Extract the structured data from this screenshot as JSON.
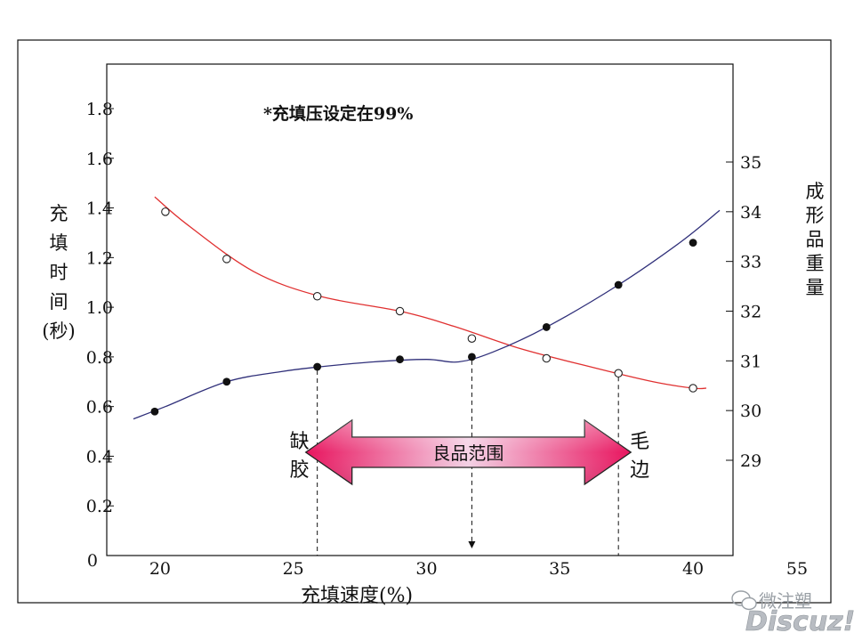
{
  "chart_data": {
    "type": "line",
    "annotation_note": "*充填压设定在99%",
    "xlabel": "充填速度(%)",
    "x_ticks": [
      "20",
      "25",
      "30",
      "35",
      "40"
    ],
    "x_extra_tick": "55",
    "xlim": [
      18,
      41.5
    ],
    "y_left": {
      "label_chars": [
        "充",
        "填",
        "时",
        "间",
        "(秒)"
      ],
      "ticks": [
        "0",
        "0.2",
        "0.4",
        "0.6",
        "0.8",
        "1.0",
        "1.2",
        "1.4",
        "1.6",
        "1.8"
      ],
      "range": [
        0,
        1.8
      ]
    },
    "y_right": {
      "label_chars": [
        "成",
        "形",
        "品",
        "重",
        "量"
      ],
      "ticks": [
        "29",
        "30",
        "31",
        "32",
        "33",
        "34",
        "35"
      ],
      "range": [
        29,
        35
      ]
    },
    "series": [
      {
        "axis": "right",
        "color": "#e03030",
        "marker": "open-circle",
        "points": [
          [
            20.2,
            34.0
          ],
          [
            22.5,
            33.05
          ],
          [
            25.9,
            32.3
          ],
          [
            29.0,
            32.0
          ],
          [
            31.7,
            31.45
          ],
          [
            34.5,
            31.05
          ],
          [
            37.2,
            30.75
          ],
          [
            40.0,
            30.45
          ]
        ],
        "curve": [
          [
            19.8,
            34.3
          ],
          [
            21.0,
            33.75
          ],
          [
            23.5,
            32.8
          ],
          [
            26.0,
            32.3
          ],
          [
            29.0,
            32.0
          ],
          [
            31.0,
            31.7
          ],
          [
            33.5,
            31.25
          ],
          [
            36.0,
            30.9
          ],
          [
            38.5,
            30.58
          ],
          [
            40.0,
            30.45
          ],
          [
            40.5,
            30.45
          ]
        ]
      },
      {
        "axis": "left",
        "color": "#30307a",
        "marker": "filled-dot",
        "points": [
          [
            19.8,
            0.58
          ],
          [
            22.5,
            0.7
          ],
          [
            25.9,
            0.76
          ],
          [
            29.0,
            0.79
          ],
          [
            31.7,
            0.8
          ],
          [
            34.5,
            0.92
          ],
          [
            37.2,
            1.09
          ],
          [
            40.0,
            1.26
          ]
        ],
        "curve": [
          [
            19.0,
            0.55
          ],
          [
            20.2,
            0.6
          ],
          [
            22.5,
            0.7
          ],
          [
            24.5,
            0.74
          ],
          [
            26.0,
            0.76
          ],
          [
            28.0,
            0.78
          ],
          [
            30.0,
            0.79
          ],
          [
            31.2,
            0.78
          ],
          [
            32.5,
            0.82
          ],
          [
            34.5,
            0.92
          ],
          [
            37.2,
            1.09
          ],
          [
            39.5,
            1.26
          ],
          [
            41.0,
            1.39
          ]
        ]
      }
    ],
    "guides": [
      {
        "x": 25.9,
        "from_series": 1,
        "label": [
          "缺",
          "胶"
        ]
      },
      {
        "x": 37.2,
        "from_series": 0,
        "label": [
          "毛",
          "边"
        ]
      },
      {
        "x": 31.7,
        "from_series": 1,
        "arrow": true
      }
    ],
    "band": {
      "label": "良品范围",
      "from": 26.2,
      "to": 37.0
    }
  },
  "watermark": {
    "line1": "微注塑",
    "line2": "Discuz!"
  }
}
